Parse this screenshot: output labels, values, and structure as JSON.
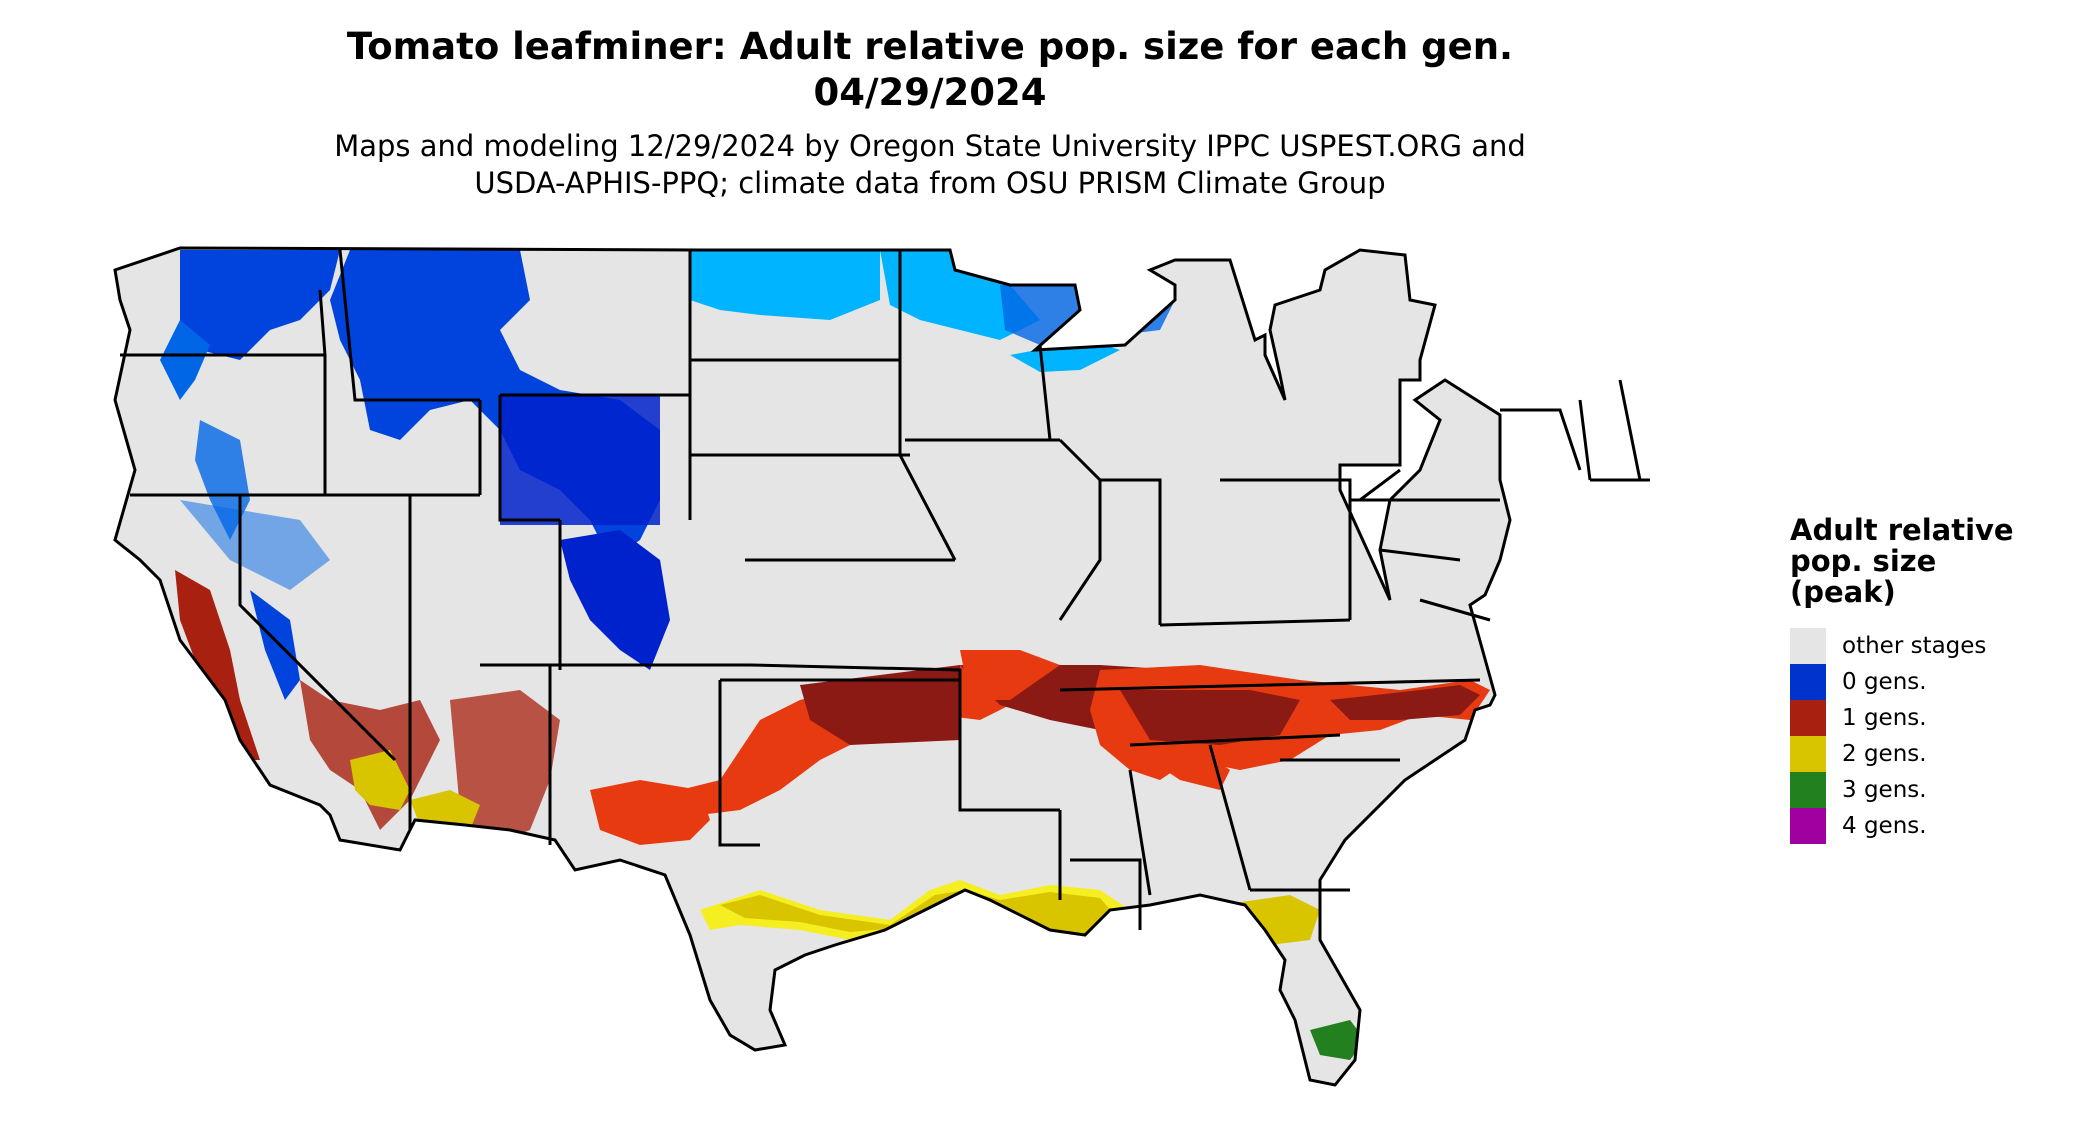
{
  "title": {
    "line1": "Tomato leafminer: Adult relative pop. size for each gen.",
    "line2": "04/29/2024"
  },
  "subtitle": {
    "line1": "Maps and modeling 12/29/2024 by Oregon State University IPPC USPEST.ORG and",
    "line2": "USDA-APHIS-PPQ; climate data from OSU PRISM Climate Group"
  },
  "legend": {
    "title": [
      "Adult relative",
      "pop. size",
      "(peak)"
    ],
    "items": [
      {
        "label": "other stages",
        "color": "#e5e5e5"
      },
      {
        "label": "0 gens.",
        "color": "#0033cc"
      },
      {
        "label": "1 gens.",
        "color": "#a8200f"
      },
      {
        "label": "2 gens.",
        "color": "#d9c400"
      },
      {
        "label": "3 gens.",
        "color": "#22801f"
      },
      {
        "label": "4 gens.",
        "color": "#a000a0"
      }
    ]
  },
  "map_colors": {
    "land": "#e5e5e5",
    "border": "#000000",
    "zero_gen_light": "#00b4ff",
    "zero_gen_mid": "#0066e6",
    "zero_gen_dark": "#0022cc",
    "one_gen_orange": "#e83a10",
    "one_gen_dark": "#8c1a14",
    "two_gen": "#d9c400",
    "two_gen_edge": "#f5ee20",
    "three_gen": "#22801f"
  }
}
